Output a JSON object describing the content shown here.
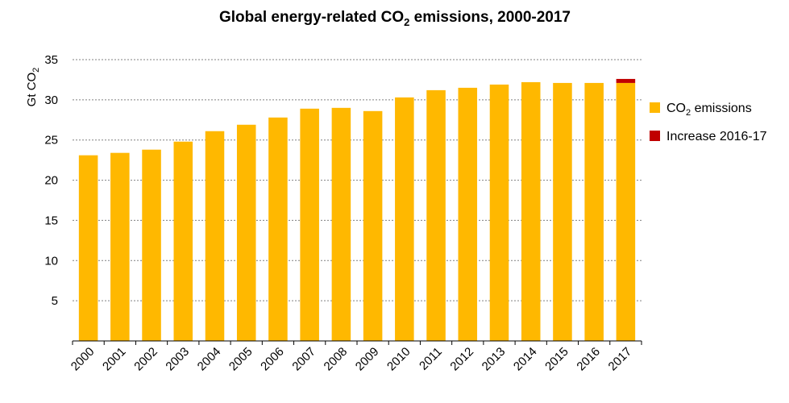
{
  "chart_data": {
    "type": "bar",
    "title_parts": [
      "Global energy-related CO",
      "2",
      " emissions, 2000-2017"
    ],
    "ylabel_parts": [
      "Gt CO",
      "2"
    ],
    "xlabel": "",
    "ylim": [
      0,
      35
    ],
    "yticks": [
      5,
      10,
      15,
      20,
      25,
      30,
      35
    ],
    "grid": true,
    "legend_position": "right",
    "categories": [
      "2000",
      "2001",
      "2002",
      "2003",
      "2004",
      "2005",
      "2006",
      "2007",
      "2008",
      "2009",
      "2010",
      "2011",
      "2012",
      "2013",
      "2014",
      "2015",
      "2016",
      "2017"
    ],
    "series": [
      {
        "name_parts": [
          "CO",
          "2",
          " emissions"
        ],
        "color": "#FFB800",
        "values": [
          23.1,
          23.4,
          23.8,
          24.8,
          26.1,
          26.9,
          27.8,
          28.9,
          29.0,
          28.6,
          30.3,
          31.2,
          31.5,
          31.9,
          32.2,
          32.1,
          32.1,
          32.1
        ]
      },
      {
        "name_parts": [
          "Increase 2016-17",
          "",
          ""
        ],
        "color": "#C00000",
        "values": [
          0,
          0,
          0,
          0,
          0,
          0,
          0,
          0,
          0,
          0,
          0,
          0,
          0,
          0,
          0,
          0,
          0,
          0.5
        ]
      }
    ]
  }
}
